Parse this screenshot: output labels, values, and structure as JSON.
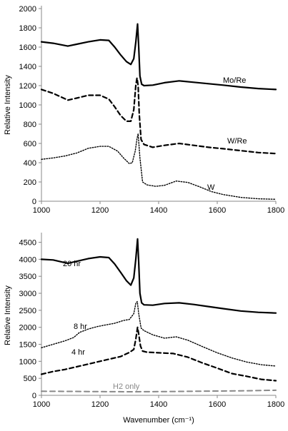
{
  "chart_data": [
    {
      "type": "line",
      "xlabel": "",
      "ylabel": "Relative Intensity",
      "xlim": [
        1000,
        1800
      ],
      "ylim": [
        0,
        2000
      ],
      "xticks": [
        "1000",
        "1200",
        "1400",
        "1600",
        "1800"
      ],
      "yticks": [
        "0",
        "200",
        "400",
        "600",
        "800",
        "1000",
        "1200",
        "1400",
        "1600",
        "1800",
        "2000"
      ],
      "grid": false,
      "legend": "none",
      "series": [
        {
          "name": "Mo/Re",
          "style": "solid",
          "x": [
            1000,
            1040,
            1090,
            1120,
            1160,
            1200,
            1230,
            1250,
            1270,
            1290,
            1305,
            1315,
            1322,
            1328,
            1332,
            1336,
            1342,
            1350,
            1380,
            1420,
            1470,
            1520,
            1570,
            1620,
            1680,
            1740,
            1800
          ],
          "y": [
            1655,
            1640,
            1610,
            1630,
            1655,
            1675,
            1670,
            1600,
            1520,
            1450,
            1420,
            1480,
            1650,
            1840,
            1600,
            1300,
            1215,
            1200,
            1205,
            1230,
            1250,
            1235,
            1220,
            1205,
            1185,
            1170,
            1160
          ]
        },
        {
          "name": "W/Re",
          "style": "dashed",
          "x": [
            1000,
            1040,
            1090,
            1120,
            1160,
            1200,
            1230,
            1250,
            1270,
            1290,
            1305,
            1315,
            1322,
            1326,
            1330,
            1334,
            1340,
            1350,
            1380,
            1420,
            1470,
            1520,
            1570,
            1620,
            1680,
            1740,
            1800
          ],
          "y": [
            1160,
            1120,
            1050,
            1070,
            1100,
            1100,
            1060,
            980,
            890,
            830,
            830,
            950,
            1200,
            1280,
            1200,
            900,
            640,
            590,
            560,
            580,
            600,
            580,
            560,
            545,
            525,
            505,
            495
          ]
        },
        {
          "name": "W",
          "style": "dotted",
          "x": [
            1000,
            1040,
            1080,
            1120,
            1160,
            1200,
            1230,
            1260,
            1280,
            1300,
            1310,
            1320,
            1326,
            1330,
            1336,
            1345,
            1360,
            1390,
            1420,
            1460,
            1500,
            1540,
            1580,
            1620,
            1680,
            1740,
            1800
          ],
          "y": [
            435,
            450,
            470,
            500,
            550,
            570,
            570,
            520,
            450,
            390,
            400,
            520,
            650,
            700,
            450,
            200,
            170,
            155,
            165,
            210,
            195,
            150,
            100,
            70,
            40,
            25,
            20
          ]
        }
      ],
      "annotations": [
        "Mo/Re",
        "W/Re",
        "W"
      ]
    },
    {
      "type": "line",
      "xlabel": "Wavenumber (cm⁻¹)",
      "ylabel": "Relative Intensity",
      "xlim": [
        1000,
        1800
      ],
      "ylim": [
        0,
        4700
      ],
      "xticks": [
        "1000",
        "1200",
        "1400",
        "1600",
        "1800"
      ],
      "yticks": [
        "0",
        "500",
        "1000",
        "1500",
        "2000",
        "2500",
        "3000",
        "3500",
        "4000",
        "4500"
      ],
      "grid": false,
      "legend": "none",
      "series": [
        {
          "name": "20 hr",
          "style": "solid",
          "x": [
            1000,
            1040,
            1090,
            1120,
            1160,
            1200,
            1230,
            1250,
            1270,
            1290,
            1305,
            1315,
            1322,
            1328,
            1332,
            1336,
            1342,
            1350,
            1380,
            1420,
            1470,
            1520,
            1570,
            1620,
            1680,
            1740,
            1800
          ],
          "y": [
            4000,
            3980,
            3880,
            3940,
            4020,
            4070,
            4050,
            3860,
            3620,
            3370,
            3240,
            3450,
            4000,
            4600,
            3900,
            3000,
            2720,
            2660,
            2650,
            2700,
            2720,
            2670,
            2610,
            2550,
            2480,
            2440,
            2420
          ]
        },
        {
          "name": "8 hr",
          "style": "dotted",
          "x": [
            1000,
            1040,
            1080,
            1110,
            1130,
            1160,
            1190,
            1220,
            1250,
            1280,
            1300,
            1315,
            1322,
            1327,
            1332,
            1340,
            1350,
            1380,
            1420,
            1460,
            1500,
            1550,
            1600,
            1650,
            1700,
            1750,
            1800
          ],
          "y": [
            1400,
            1500,
            1600,
            1700,
            1850,
            1950,
            2020,
            2070,
            2120,
            2200,
            2230,
            2400,
            2700,
            2760,
            2400,
            1980,
            1900,
            1780,
            1680,
            1720,
            1620,
            1430,
            1250,
            1100,
            980,
            900,
            860
          ]
        },
        {
          "name": "4 hr",
          "style": "dashed",
          "x": [
            1000,
            1040,
            1080,
            1120,
            1160,
            1200,
            1240,
            1270,
            1300,
            1315,
            1322,
            1328,
            1332,
            1338,
            1345,
            1360,
            1400,
            1450,
            1500,
            1550,
            1600,
            1650,
            1700,
            1750,
            1800
          ],
          "y": [
            620,
            700,
            760,
            840,
            920,
            1000,
            1080,
            1140,
            1260,
            1350,
            1650,
            2000,
            1800,
            1450,
            1300,
            1270,
            1250,
            1230,
            1120,
            950,
            800,
            640,
            560,
            470,
            430
          ]
        },
        {
          "name": "H2 only",
          "style": "dashed-gray",
          "x": [
            1000,
            1100,
            1200,
            1300,
            1400,
            1500,
            1600,
            1700,
            1800
          ],
          "y": [
            120,
            115,
            110,
            105,
            110,
            118,
            125,
            135,
            150
          ]
        }
      ],
      "annotations": [
        "20 hr",
        "8 hr",
        "4 hr",
        "H2 only"
      ]
    }
  ]
}
